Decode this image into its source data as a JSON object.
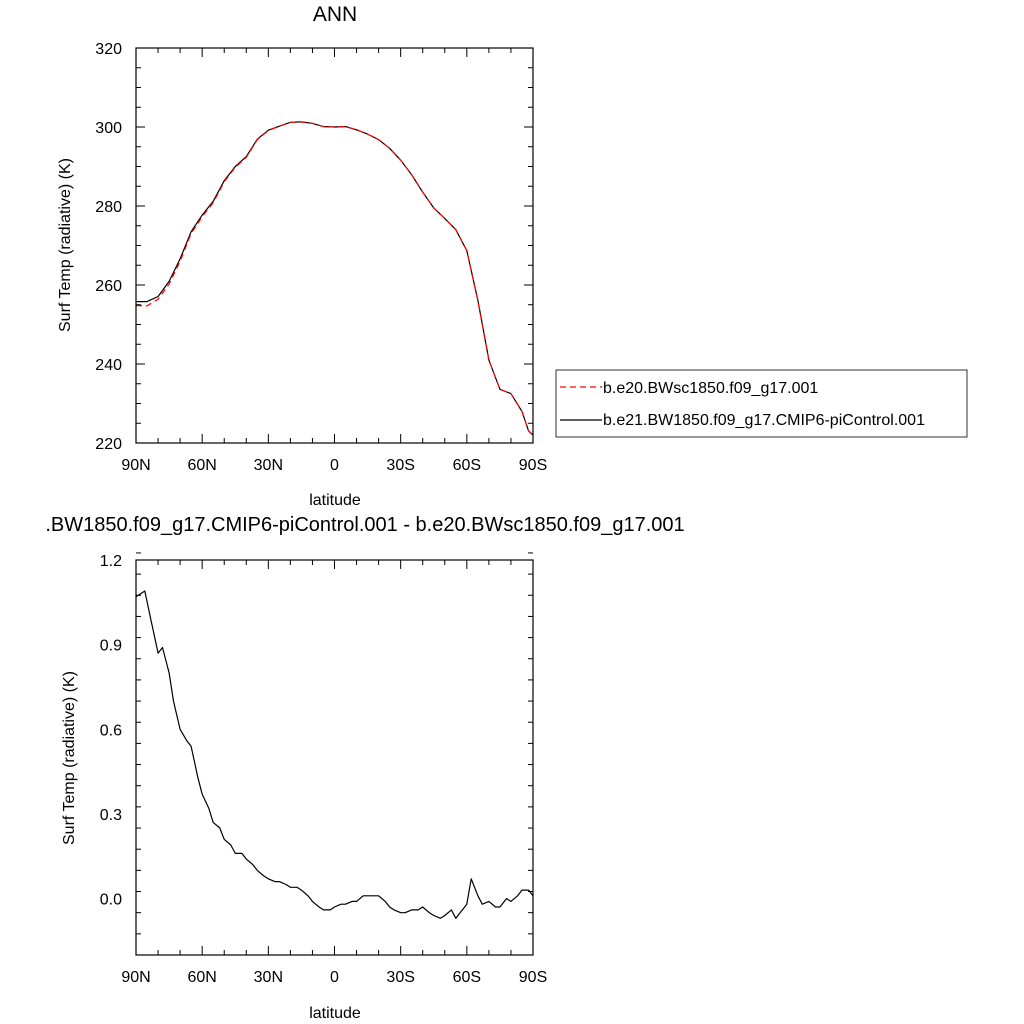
{
  "chart_data": [
    {
      "type": "line",
      "title": "ANN",
      "xlabel": "latitude",
      "ylabel": "Surf Temp (radiative) (K)",
      "x_ticklabels": [
        "90N",
        "60N",
        "30N",
        "0",
        "30S",
        "60S",
        "90S"
      ],
      "x_tickvalues": [
        90,
        60,
        30,
        0,
        -30,
        -60,
        -90
      ],
      "xlim": [
        90,
        -90
      ],
      "ylim": [
        220,
        320
      ],
      "y_ticks": [
        220,
        240,
        260,
        280,
        300,
        320
      ],
      "legend_position": "right",
      "series": [
        {
          "name": "b.e20.BWsc1850.f09_g17.001",
          "color": "#ff0000",
          "style": "dashed",
          "x": [
            90,
            85,
            80,
            75,
            70,
            65,
            60,
            55,
            50,
            45,
            40,
            35,
            30,
            25,
            20,
            15,
            10,
            5,
            0,
            -5,
            -10,
            -15,
            -20,
            -25,
            -30,
            -35,
            -40,
            -45,
            -50,
            -55,
            -60,
            -65,
            -70,
            -75,
            -80,
            -85,
            -88,
            -90
          ],
          "values": [
            254.8,
            254.7,
            256.4,
            260.2,
            266.0,
            273.0,
            277.3,
            280.8,
            286.1,
            289.8,
            292.3,
            296.8,
            299.1,
            300.2,
            301.2,
            301.3,
            300.9,
            300.1,
            300.0,
            300.1,
            299.3,
            298.2,
            296.8,
            294.6,
            291.6,
            287.9,
            283.5,
            279.5,
            276.8,
            274.0,
            268.7,
            256.0,
            241.0,
            233.6,
            232.5,
            228.0,
            223.0,
            222.0
          ]
        },
        {
          "name": "b.e21.BW1850.f09_g17.CMIP6-piControl.001",
          "color": "#000000",
          "style": "solid",
          "x": [
            90,
            85,
            80,
            75,
            70,
            65,
            60,
            55,
            50,
            45,
            40,
            35,
            30,
            25,
            20,
            15,
            10,
            5,
            0,
            -5,
            -10,
            -15,
            -20,
            -25,
            -30,
            -35,
            -40,
            -45,
            -50,
            -55,
            -60,
            -65,
            -70,
            -75,
            -80,
            -85,
            -88,
            -90
          ],
          "values": [
            255.8,
            255.8,
            257.1,
            260.9,
            266.6,
            273.5,
            277.7,
            281.2,
            286.4,
            290.0,
            292.5,
            296.9,
            299.2,
            300.2,
            301.2,
            301.3,
            300.9,
            300.1,
            300.0,
            300.1,
            299.3,
            298.2,
            296.8,
            294.6,
            291.6,
            287.9,
            283.5,
            279.5,
            276.8,
            274.0,
            268.7,
            256.1,
            241.0,
            233.6,
            232.5,
            228.0,
            223.0,
            222.0
          ]
        }
      ]
    },
    {
      "type": "line",
      "title": ".BW1850.f09_g17.CMIP6-piControl.001 - b.e20.BWsc1850.f09_g17.001",
      "xlabel": "latitude",
      "ylabel": "Surf Temp (radiative) (K)",
      "x_ticklabels": [
        "90N",
        "60N",
        "30N",
        "0",
        "30S",
        "60S",
        "90S"
      ],
      "x_tickvalues": [
        90,
        60,
        30,
        0,
        -30,
        -60,
        -90
      ],
      "xlim": [
        90,
        -90
      ],
      "ylim": [
        -0.2,
        1.2
      ],
      "y_ticks": [
        0.0,
        0.3,
        0.6,
        0.9,
        1.2
      ],
      "y_ticklabels": [
        "0.0",
        "0.3",
        "0.6",
        "0.9",
        "1.2"
      ],
      "series": [
        {
          "color": "#000000",
          "style": "solid",
          "x": [
            90,
            86,
            83,
            80,
            78,
            75,
            73,
            70,
            67,
            65,
            62,
            60,
            57,
            55,
            52,
            50,
            47,
            45,
            42,
            40,
            37,
            35,
            32,
            30,
            27,
            25,
            22,
            20,
            17,
            15,
            12,
            10,
            7,
            5,
            2,
            0,
            -3,
            -5,
            -8,
            -10,
            -13,
            -15,
            -18,
            -20,
            -23,
            -25,
            -27,
            -30,
            -32,
            -35,
            -38,
            -40,
            -43,
            -45,
            -48,
            -50,
            -53,
            -55,
            -58,
            -60,
            -62,
            -65,
            -67,
            -70,
            -73,
            -75,
            -78,
            -80,
            -83,
            -85,
            -88,
            -90
          ],
          "values": [
            1.07,
            1.09,
            0.98,
            0.87,
            0.89,
            0.8,
            0.7,
            0.6,
            0.56,
            0.54,
            0.43,
            0.37,
            0.32,
            0.27,
            0.25,
            0.21,
            0.19,
            0.16,
            0.16,
            0.14,
            0.12,
            0.1,
            0.08,
            0.07,
            0.06,
            0.06,
            0.05,
            0.04,
            0.04,
            0.03,
            0.01,
            -0.01,
            -0.03,
            -0.04,
            -0.04,
            -0.03,
            -0.02,
            -0.02,
            -0.01,
            -0.01,
            0.01,
            0.01,
            0.01,
            0.01,
            -0.01,
            -0.03,
            -0.04,
            -0.05,
            -0.05,
            -0.04,
            -0.04,
            -0.03,
            -0.05,
            -0.06,
            -0.07,
            -0.06,
            -0.04,
            -0.07,
            -0.04,
            -0.02,
            0.07,
            0.01,
            -0.02,
            -0.01,
            -0.03,
            -0.03,
            0.0,
            -0.01,
            0.01,
            0.03,
            0.03,
            0.01
          ]
        }
      ]
    }
  ]
}
